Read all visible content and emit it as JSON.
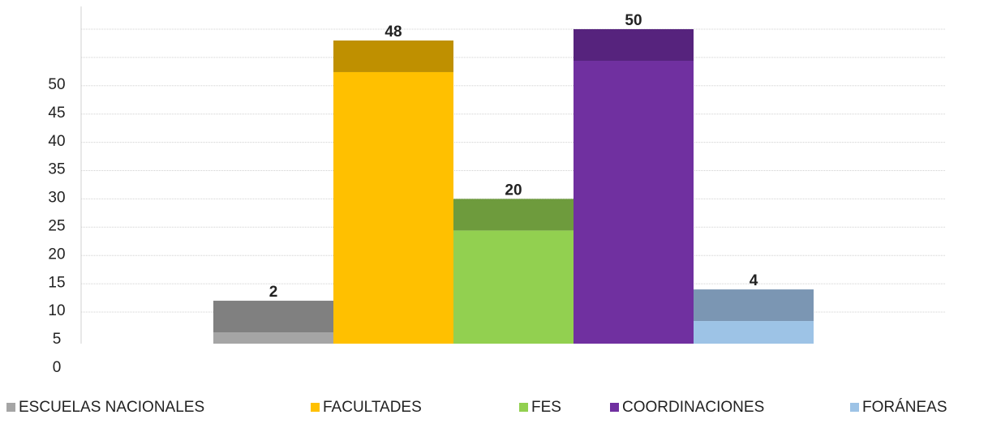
{
  "chart_data": {
    "type": "bar",
    "categories": [
      "ESCUELAS NACIONALES",
      "FACULTADES",
      "FES",
      "COORDINACIONES",
      "FORÁNEAS"
    ],
    "values": [
      2,
      48,
      20,
      50,
      4
    ],
    "colors": [
      "#a5a5a5",
      "#ffc000",
      "#92d050",
      "#7030a0",
      "#9dc3e6"
    ],
    "top_colors": [
      "#808080",
      "#bf9000",
      "#6e9b3d",
      "#56237d",
      "#7b96b3"
    ],
    "ylim": [
      0,
      50
    ],
    "yticks": [
      0,
      5,
      10,
      15,
      20,
      25,
      30,
      35,
      40,
      45,
      50
    ],
    "grid": true,
    "legend": "bottom"
  }
}
